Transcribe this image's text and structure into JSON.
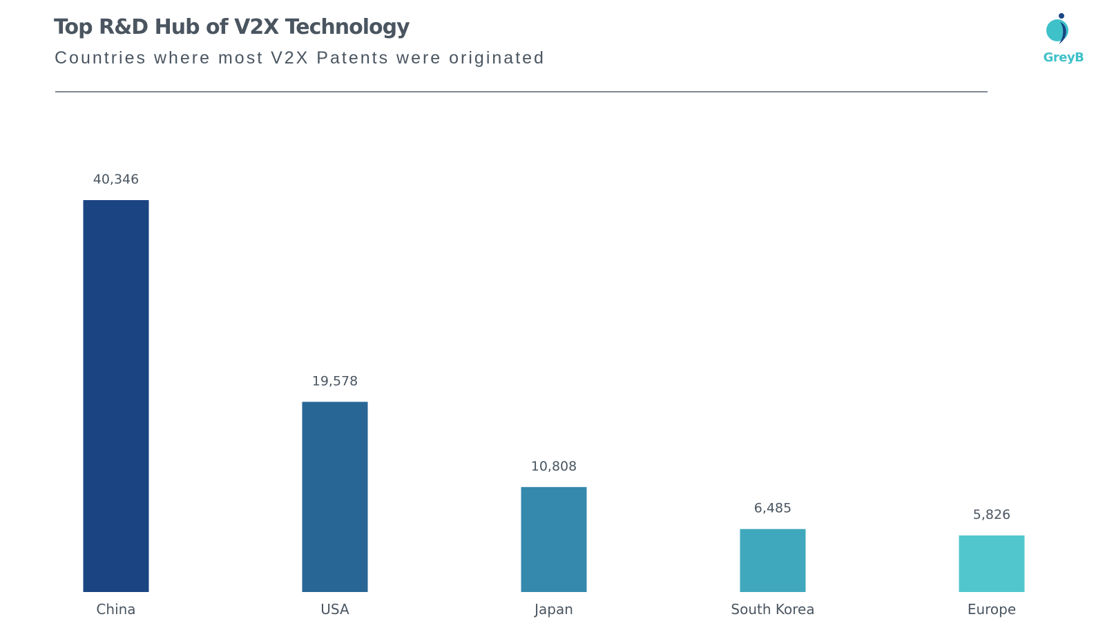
{
  "header": {
    "title": "Top R&D Hub of V2X Technology",
    "subtitle": "Countries where most V2X Patents were originated"
  },
  "logo": {
    "text": "GreyB",
    "color": "#3fc1c9"
  },
  "chart_data": {
    "type": "bar",
    "title": "Top R&D Hub of V2X Technology",
    "subtitle": "Countries where most V2X Patents were originated",
    "categories": [
      "China",
      "USA",
      "Japan",
      "South Korea",
      "Europe"
    ],
    "values": [
      40346,
      19578,
      10808,
      6485,
      5826
    ],
    "value_labels": [
      "40,346",
      "19,578",
      "10,808",
      "6,485",
      "5,826"
    ],
    "colors": [
      "#1b4482",
      "#286696",
      "#3589ac",
      "#40a8bc",
      "#51c7cd"
    ],
    "xlabel": "",
    "ylabel": "",
    "ylim": [
      0,
      40346
    ],
    "grid": false,
    "legend": "none"
  }
}
